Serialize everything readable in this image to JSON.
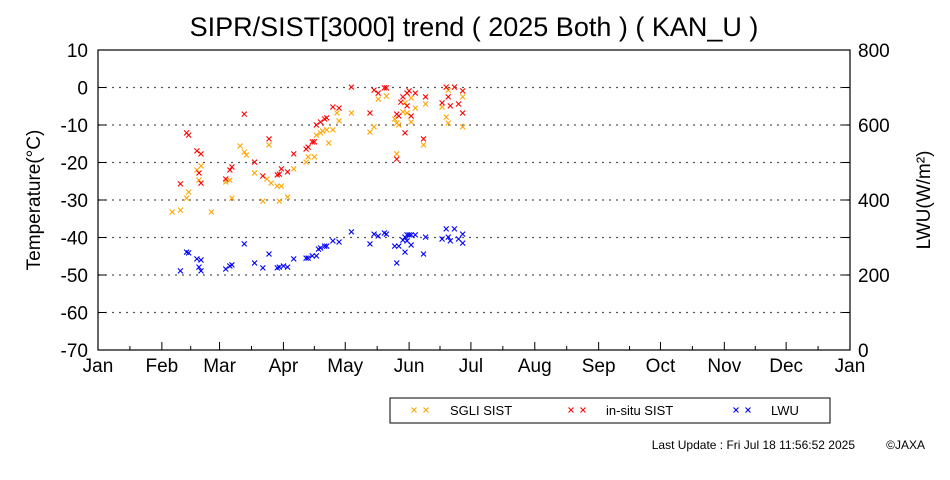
{
  "chart_data": {
    "type": "scatter",
    "title": "SIPR/SIST[3000] trend ( 2025 Both ) ( KAN_U )",
    "xlabel": "",
    "ylabel": "Temperature(°C)",
    "y2label": "LWU(W/m²)",
    "x_unit": "day of year",
    "xlim": [
      0,
      365
    ],
    "ylim": [
      -70,
      10
    ],
    "y2lim": [
      0,
      800
    ],
    "x_ticks": [
      {
        "label": "Jan",
        "day": 0
      },
      {
        "label": "Feb",
        "day": 31
      },
      {
        "label": "Mar",
        "day": 59
      },
      {
        "label": "Apr",
        "day": 90
      },
      {
        "label": "May",
        "day": 120
      },
      {
        "label": "Jun",
        "day": 151
      },
      {
        "label": "Jul",
        "day": 181
      },
      {
        "label": "Aug",
        "day": 212
      },
      {
        "label": "Sep",
        "day": 243
      },
      {
        "label": "Oct",
        "day": 273
      },
      {
        "label": "Nov",
        "day": 304
      },
      {
        "label": "Dec",
        "day": 334
      },
      {
        "label": "Jan",
        "day": 365
      }
    ],
    "y_ticks": [
      10,
      0,
      -10,
      -20,
      -30,
      -40,
      -50,
      -60,
      -70
    ],
    "y2_ticks": [
      800,
      600,
      400,
      200,
      0
    ],
    "grid": "dotted horizontal",
    "legend_position": "bottom",
    "series": [
      {
        "name": "SGLI SIST",
        "color": "#ffa500",
        "axis": "left",
        "points": [
          [
            36,
            -33.2
          ],
          [
            40,
            -32.7
          ],
          [
            43,
            -29.5
          ],
          [
            44,
            -27.9
          ],
          [
            48,
            -22
          ],
          [
            49,
            -24.7
          ],
          [
            50,
            -20.9
          ],
          [
            55,
            -33.2
          ],
          [
            62,
            -25.2
          ],
          [
            64,
            -24.7
          ],
          [
            65,
            -29.5
          ],
          [
            69,
            -15.6
          ],
          [
            71,
            -17.2
          ],
          [
            72,
            -18
          ],
          [
            76,
            -22.8
          ],
          [
            80,
            -30.3
          ],
          [
            82,
            -24.4
          ],
          [
            83,
            -15.3
          ],
          [
            84,
            -25.5
          ],
          [
            87,
            -26.3
          ],
          [
            89,
            -26.3
          ],
          [
            88,
            -30.3
          ],
          [
            92,
            -29.2
          ],
          [
            95,
            -21.7
          ],
          [
            101,
            -19.9
          ],
          [
            102,
            -18.5
          ],
          [
            105,
            -18.5
          ],
          [
            106,
            -12.7
          ],
          [
            108,
            -12.1
          ],
          [
            109,
            -11.6
          ],
          [
            111,
            -11.3
          ],
          [
            112,
            -14.8
          ],
          [
            114,
            -11.3
          ],
          [
            116,
            -6.8
          ],
          [
            117,
            -8.9
          ],
          [
            123,
            -6.8
          ],
          [
            132,
            -11.9
          ],
          [
            134,
            -10.5
          ],
          [
            136,
            -3.1
          ],
          [
            140,
            -2.3
          ],
          [
            144,
            -8.4
          ],
          [
            145,
            -9.5
          ],
          [
            146,
            -10
          ],
          [
            145,
            -17.7
          ],
          [
            148,
            -6.5
          ],
          [
            149,
            -4.1
          ],
          [
            150,
            -6.8
          ],
          [
            152,
            -2.8
          ],
          [
            152,
            -9.2
          ],
          [
            154,
            -5.5
          ],
          [
            158,
            -15.3
          ],
          [
            159,
            -4.4
          ],
          [
            167,
            -5.2
          ],
          [
            169,
            -7.9
          ],
          [
            170,
            -9.5
          ],
          [
            170,
            -0.7
          ],
          [
            177,
            -2.5
          ],
          [
            177,
            -10.5
          ]
        ]
      },
      {
        "name": "in-situ SIST",
        "color": "#ff0000",
        "axis": "left",
        "points": [
          [
            71,
            -7.1
          ],
          [
            43,
            -12.1
          ],
          [
            44,
            -12.7
          ],
          [
            48,
            -16.9
          ],
          [
            50,
            -17.7
          ],
          [
            49,
            -22.8
          ],
          [
            50,
            -25.5
          ],
          [
            40,
            -25.7
          ],
          [
            62,
            -24.4
          ],
          [
            64,
            -22
          ],
          [
            65,
            -21.2
          ],
          [
            76,
            -19.9
          ],
          [
            80,
            -23.6
          ],
          [
            83,
            -13.7
          ],
          [
            87,
            -23.3
          ],
          [
            88,
            -23.1
          ],
          [
            89,
            -21.7
          ],
          [
            92,
            -22.5
          ],
          [
            95,
            -17.7
          ],
          [
            101,
            -16.4
          ],
          [
            102,
            -15.9
          ],
          [
            104,
            -14.5
          ],
          [
            105,
            -14.5
          ],
          [
            106,
            -10
          ],
          [
            108,
            -9.2
          ],
          [
            110,
            -8.4
          ],
          [
            111,
            -8.1
          ],
          [
            114,
            -5.2
          ],
          [
            117,
            -5.5
          ],
          [
            123,
            0.1
          ],
          [
            132,
            -6.8
          ],
          [
            134,
            -0.7
          ],
          [
            136,
            -1.5
          ],
          [
            139,
            -0.1
          ],
          [
            140,
            -0.1
          ],
          [
            145,
            -7.1
          ],
          [
            146,
            -7.6
          ],
          [
            147,
            -3.9
          ],
          [
            148,
            -2.5
          ],
          [
            150,
            -1.5
          ],
          [
            150,
            -4.9
          ],
          [
            151,
            -0.9
          ],
          [
            152,
            -7.6
          ],
          [
            154,
            -1.5
          ],
          [
            149,
            -12.1
          ],
          [
            145,
            -19.1
          ],
          [
            159,
            -2.5
          ],
          [
            158,
            -13.7
          ],
          [
            167,
            -4.1
          ],
          [
            169,
            0.1
          ],
          [
            170,
            -2.5
          ],
          [
            171,
            -4.9
          ],
          [
            173,
            0.1
          ],
          [
            175,
            -4.4
          ],
          [
            177,
            -0.9
          ],
          [
            177,
            -6.8
          ]
        ]
      },
      {
        "name": "LWU",
        "color": "#0000ff",
        "axis": "right",
        "points": [
          [
            40,
            211
          ],
          [
            43,
            261
          ],
          [
            44,
            259
          ],
          [
            48,
            243
          ],
          [
            50,
            240
          ],
          [
            49,
            221
          ],
          [
            50,
            211
          ],
          [
            62,
            216
          ],
          [
            64,
            224
          ],
          [
            65,
            227
          ],
          [
            71,
            283
          ],
          [
            76,
            232
          ],
          [
            80,
            219
          ],
          [
            83,
            256
          ],
          [
            87,
            219
          ],
          [
            88,
            221
          ],
          [
            90,
            224
          ],
          [
            92,
            221
          ],
          [
            95,
            243
          ],
          [
            101,
            245
          ],
          [
            102,
            245
          ],
          [
            104,
            251
          ],
          [
            106,
            251
          ],
          [
            107,
            269
          ],
          [
            108,
            272
          ],
          [
            110,
            277
          ],
          [
            111,
            277
          ],
          [
            114,
            291
          ],
          [
            117,
            288
          ],
          [
            123,
            315
          ],
          [
            132,
            283
          ],
          [
            134,
            309
          ],
          [
            136,
            304
          ],
          [
            139,
            312
          ],
          [
            140,
            309
          ],
          [
            144,
            277
          ],
          [
            146,
            277
          ],
          [
            145,
            232
          ],
          [
            148,
            293
          ],
          [
            149,
            301
          ],
          [
            150,
            307
          ],
          [
            150,
            291
          ],
          [
            151,
            307
          ],
          [
            152,
            307
          ],
          [
            154,
            307
          ],
          [
            152,
            280
          ],
          [
            149,
            261
          ],
          [
            159,
            301
          ],
          [
            158,
            256
          ],
          [
            167,
            296
          ],
          [
            169,
            323
          ],
          [
            170,
            301
          ],
          [
            171,
            291
          ],
          [
            173,
            323
          ],
          [
            175,
            296
          ],
          [
            177,
            309
          ],
          [
            177,
            285
          ]
        ]
      }
    ]
  },
  "footer": {
    "last_update": "Last Update : Fri Jul 18 11:56:52 2025",
    "copyright": "©JAXA"
  }
}
